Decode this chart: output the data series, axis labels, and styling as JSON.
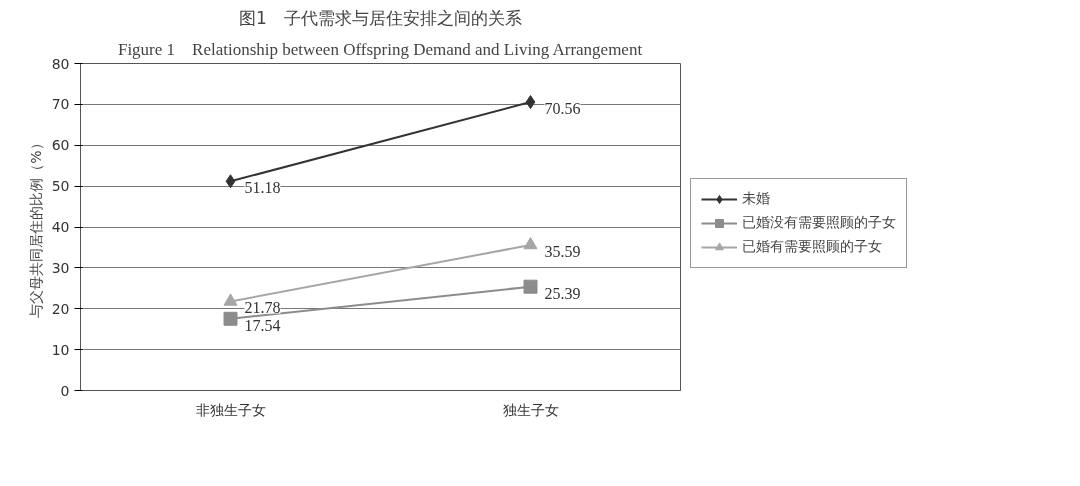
{
  "chart_data": {
    "type": "line",
    "title": "图1　子代需求与居住安排之间的关系",
    "subtitle": "Figure 1　Relationship between Offspring Demand and Living Arrangement",
    "ylabel": "与父母共同居住的比例（%）",
    "categories": [
      "非独生子女",
      "独生子女"
    ],
    "series": [
      {
        "name": "未婚",
        "color": "#333333",
        "marker": "diamond",
        "values": [
          51.18,
          70.56
        ]
      },
      {
        "name": "已婚没有需要照顾的子女",
        "color": "#8c8c8c",
        "marker": "square",
        "values": [
          17.54,
          25.39
        ]
      },
      {
        "name": "已婚有需要照顾的子女",
        "color": "#a6a6a6",
        "marker": "triangle",
        "values": [
          21.78,
          35.59
        ]
      }
    ],
    "ylim": [
      0,
      80
    ],
    "yticks": [
      0,
      10,
      20,
      30,
      40,
      50,
      60,
      70,
      80
    ],
    "grid": "y",
    "legend": "right",
    "data_labels": true
  }
}
